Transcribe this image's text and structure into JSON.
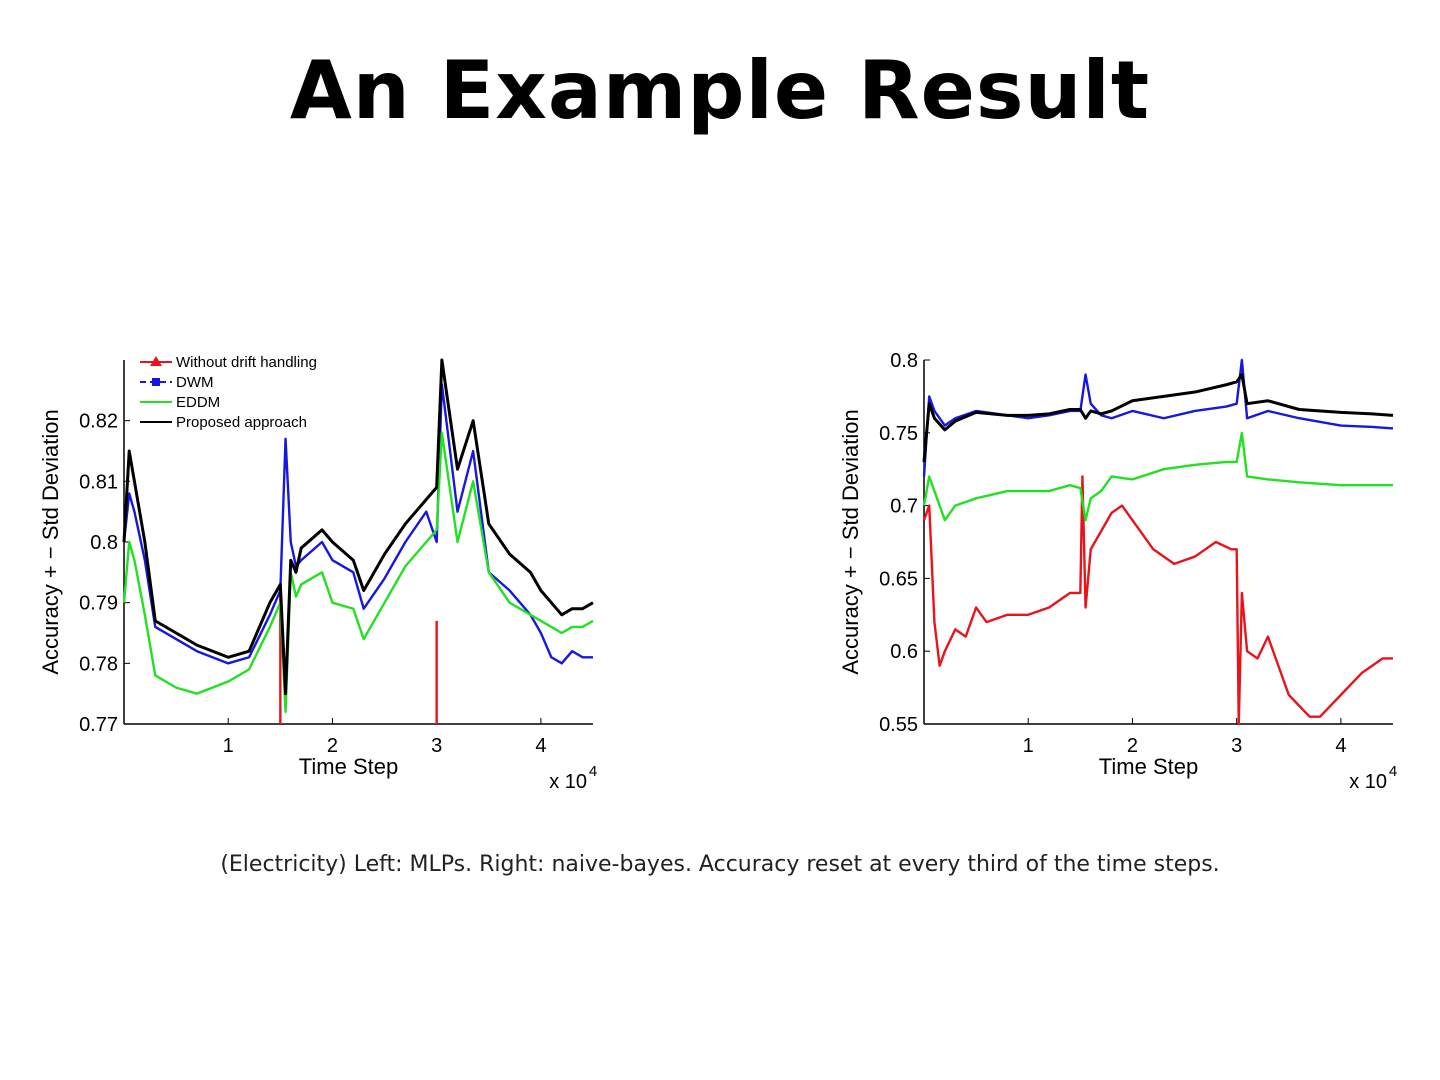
{
  "slide": {
    "title": "An Example Result",
    "caption": "(Electricity) Left: MLPs. Right: naive-bayes. Accuracy reset at every third of the time steps."
  },
  "colors": {
    "without_drift": "#e8141b",
    "dwm": "#1717e0",
    "eddm": "#22e022",
    "proposed": "#000000"
  },
  "chart_data": [
    {
      "type": "line",
      "title": "",
      "xlabel": "Time Step",
      "ylabel": "Accuracy + − Std Deviation",
      "x_multiplier": "x 10",
      "x_multiplier_exp": "4",
      "xlim": [
        0,
        4.5
      ],
      "ylim": [
        0.77,
        0.83
      ],
      "xticks": [
        1,
        2,
        3,
        4
      ],
      "yticks": [
        0.77,
        0.78,
        0.79,
        0.8,
        0.81,
        0.82
      ],
      "ytick_labels": [
        "0.77",
        "0.78",
        "0.79",
        "0.8",
        "0.81",
        "0.82"
      ],
      "xtick_labels": [
        "1",
        "2",
        "3",
        "4"
      ],
      "legend_position": "top-left",
      "series": [
        {
          "name": "Without drift handling",
          "key": "without_drift",
          "x": [
            1.5,
            1.5,
            3.0,
            3.0
          ],
          "y": [
            0.77,
            0.792,
            0.77,
            0.787
          ]
        },
        {
          "name": "DWM",
          "key": "dwm",
          "x": [
            0.0,
            0.05,
            0.1,
            0.2,
            0.3,
            0.5,
            0.7,
            1.0,
            1.2,
            1.4,
            1.5,
            1.55,
            1.6,
            1.65,
            1.7,
            1.9,
            2.0,
            2.2,
            2.3,
            2.5,
            2.7,
            2.9,
            3.0,
            3.05,
            3.2,
            3.35,
            3.5,
            3.7,
            3.9,
            4.0,
            4.1,
            4.2,
            4.3,
            4.4,
            4.5
          ],
          "y": [
            0.8,
            0.808,
            0.805,
            0.797,
            0.786,
            0.784,
            0.782,
            0.78,
            0.781,
            0.788,
            0.792,
            0.817,
            0.8,
            0.796,
            0.797,
            0.8,
            0.797,
            0.795,
            0.789,
            0.794,
            0.8,
            0.805,
            0.8,
            0.826,
            0.805,
            0.815,
            0.795,
            0.792,
            0.788,
            0.785,
            0.781,
            0.78,
            0.782,
            0.781,
            0.781
          ]
        },
        {
          "name": "EDDM",
          "key": "eddm",
          "x": [
            0.0,
            0.05,
            0.1,
            0.2,
            0.3,
            0.5,
            0.7,
            1.0,
            1.2,
            1.4,
            1.5,
            1.55,
            1.6,
            1.65,
            1.7,
            1.9,
            2.0,
            2.2,
            2.3,
            2.5,
            2.7,
            2.9,
            3.0,
            3.05,
            3.2,
            3.35,
            3.5,
            3.7,
            3.9,
            4.0,
            4.1,
            4.2,
            4.3,
            4.4,
            4.5
          ],
          "y": [
            0.79,
            0.8,
            0.797,
            0.788,
            0.778,
            0.776,
            0.775,
            0.777,
            0.779,
            0.786,
            0.79,
            0.772,
            0.795,
            0.791,
            0.793,
            0.795,
            0.79,
            0.789,
            0.784,
            0.79,
            0.796,
            0.8,
            0.802,
            0.818,
            0.8,
            0.81,
            0.795,
            0.79,
            0.788,
            0.787,
            0.786,
            0.785,
            0.786,
            0.786,
            0.787
          ]
        },
        {
          "name": "Proposed approach",
          "key": "proposed",
          "x": [
            0.0,
            0.05,
            0.1,
            0.2,
            0.3,
            0.5,
            0.7,
            1.0,
            1.2,
            1.4,
            1.5,
            1.55,
            1.6,
            1.65,
            1.7,
            1.9,
            2.0,
            2.2,
            2.3,
            2.5,
            2.7,
            2.9,
            3.0,
            3.05,
            3.2,
            3.35,
            3.5,
            3.7,
            3.9,
            4.0,
            4.1,
            4.2,
            4.3,
            4.4,
            4.5
          ],
          "y": [
            0.8,
            0.815,
            0.81,
            0.8,
            0.787,
            0.785,
            0.783,
            0.781,
            0.782,
            0.79,
            0.793,
            0.775,
            0.797,
            0.795,
            0.799,
            0.802,
            0.8,
            0.797,
            0.792,
            0.798,
            0.803,
            0.807,
            0.809,
            0.83,
            0.812,
            0.82,
            0.803,
            0.798,
            0.795,
            0.792,
            0.79,
            0.788,
            0.789,
            0.789,
            0.79
          ]
        }
      ]
    },
    {
      "type": "line",
      "title": "",
      "xlabel": "Time Step",
      "ylabel": "Accuracy + − Std Deviation",
      "x_multiplier": "x 10",
      "x_multiplier_exp": "4",
      "xlim": [
        0,
        4.5
      ],
      "ylim": [
        0.55,
        0.8
      ],
      "xticks": [
        1,
        2,
        3,
        4
      ],
      "yticks": [
        0.55,
        0.6,
        0.65,
        0.7,
        0.75,
        0.8
      ],
      "ytick_labels": [
        "0.55",
        "0.6",
        "0.65",
        "0.7",
        "0.75",
        "0.8"
      ],
      "xtick_labels": [
        "1",
        "2",
        "3",
        "4"
      ],
      "series": [
        {
          "name": "Without drift handling",
          "key": "without_drift",
          "x": [
            0.0,
            0.05,
            0.1,
            0.15,
            0.2,
            0.3,
            0.4,
            0.5,
            0.6,
            0.8,
            1.0,
            1.2,
            1.4,
            1.5,
            1.52,
            1.55,
            1.6,
            1.8,
            1.9,
            2.0,
            2.2,
            2.4,
            2.6,
            2.8,
            2.95,
            3.0,
            3.02,
            3.05,
            3.1,
            3.2,
            3.3,
            3.4,
            3.5,
            3.7,
            3.8,
            4.0,
            4.2,
            4.4,
            4.5
          ],
          "y": [
            0.69,
            0.7,
            0.62,
            0.59,
            0.6,
            0.615,
            0.61,
            0.63,
            0.62,
            0.625,
            0.625,
            0.63,
            0.64,
            0.64,
            0.72,
            0.63,
            0.67,
            0.695,
            0.7,
            0.69,
            0.67,
            0.66,
            0.665,
            0.675,
            0.67,
            0.67,
            0.55,
            0.64,
            0.6,
            0.595,
            0.61,
            0.59,
            0.57,
            0.555,
            0.555,
            0.57,
            0.585,
            0.595,
            0.595
          ]
        },
        {
          "name": "DWM",
          "key": "dwm",
          "x": [
            0.0,
            0.05,
            0.1,
            0.2,
            0.3,
            0.5,
            0.8,
            1.0,
            1.2,
            1.4,
            1.5,
            1.55,
            1.6,
            1.7,
            1.8,
            2.0,
            2.3,
            2.6,
            2.9,
            3.0,
            3.05,
            3.1,
            3.3,
            3.6,
            4.0,
            4.3,
            4.5
          ],
          "y": [
            0.72,
            0.775,
            0.765,
            0.755,
            0.76,
            0.765,
            0.762,
            0.76,
            0.762,
            0.765,
            0.765,
            0.79,
            0.77,
            0.762,
            0.76,
            0.765,
            0.76,
            0.765,
            0.768,
            0.77,
            0.8,
            0.76,
            0.765,
            0.76,
            0.755,
            0.754,
            0.753
          ]
        },
        {
          "name": "EDDM",
          "key": "eddm",
          "x": [
            0.0,
            0.05,
            0.1,
            0.2,
            0.3,
            0.5,
            0.8,
            1.0,
            1.2,
            1.4,
            1.5,
            1.55,
            1.6,
            1.7,
            1.8,
            2.0,
            2.3,
            2.6,
            2.9,
            3.0,
            3.05,
            3.1,
            3.3,
            3.6,
            4.0,
            4.3,
            4.5
          ],
          "y": [
            0.7,
            0.72,
            0.71,
            0.69,
            0.7,
            0.705,
            0.71,
            0.71,
            0.71,
            0.714,
            0.712,
            0.69,
            0.705,
            0.71,
            0.72,
            0.718,
            0.725,
            0.728,
            0.73,
            0.73,
            0.75,
            0.72,
            0.718,
            0.716,
            0.714,
            0.714,
            0.714
          ]
        },
        {
          "name": "Proposed approach",
          "key": "proposed",
          "x": [
            0.0,
            0.05,
            0.1,
            0.2,
            0.3,
            0.5,
            0.8,
            1.0,
            1.2,
            1.4,
            1.5,
            1.55,
            1.6,
            1.7,
            1.8,
            2.0,
            2.3,
            2.6,
            2.9,
            3.0,
            3.05,
            3.1,
            3.3,
            3.6,
            4.0,
            4.3,
            4.5
          ],
          "y": [
            0.73,
            0.77,
            0.76,
            0.752,
            0.758,
            0.764,
            0.762,
            0.762,
            0.763,
            0.766,
            0.766,
            0.76,
            0.765,
            0.763,
            0.765,
            0.772,
            0.775,
            0.778,
            0.783,
            0.785,
            0.79,
            0.77,
            0.772,
            0.766,
            0.764,
            0.763,
            0.762
          ]
        }
      ]
    }
  ]
}
